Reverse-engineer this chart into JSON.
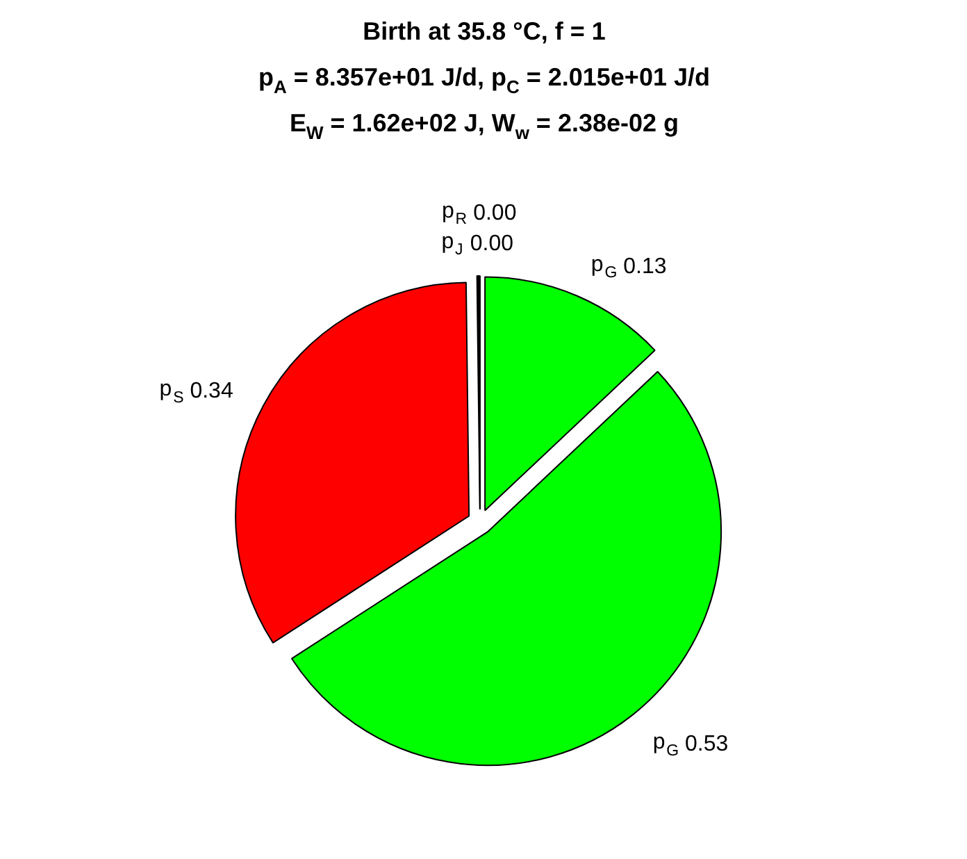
{
  "chart_data": {
    "type": "pie",
    "title": "Birth at 35.8 °C, f = 1\np$_{A}$ = 8.357e+01 J/d, p$_{C}$ = 2.015e+01 J/d\nE$_{W}$ = 1.62e+02 J, W$_{w}$ = 2.38e-02 g",
    "categories": [
      "p$_{G}$",
      "p$_{G}$",
      "p$_{S}$",
      "p$_{J}$",
      "p$_{R}$"
    ],
    "values": [
      0.13,
      0.53,
      0.34,
      0.001,
      0.001
    ],
    "value_labels": [
      "0.13",
      "0.53",
      "0.34",
      "0.00",
      "0.00"
    ],
    "colors": [
      "#00ff00",
      "#00ff00",
      "#ff0000",
      "#000000",
      "#000000"
    ]
  }
}
